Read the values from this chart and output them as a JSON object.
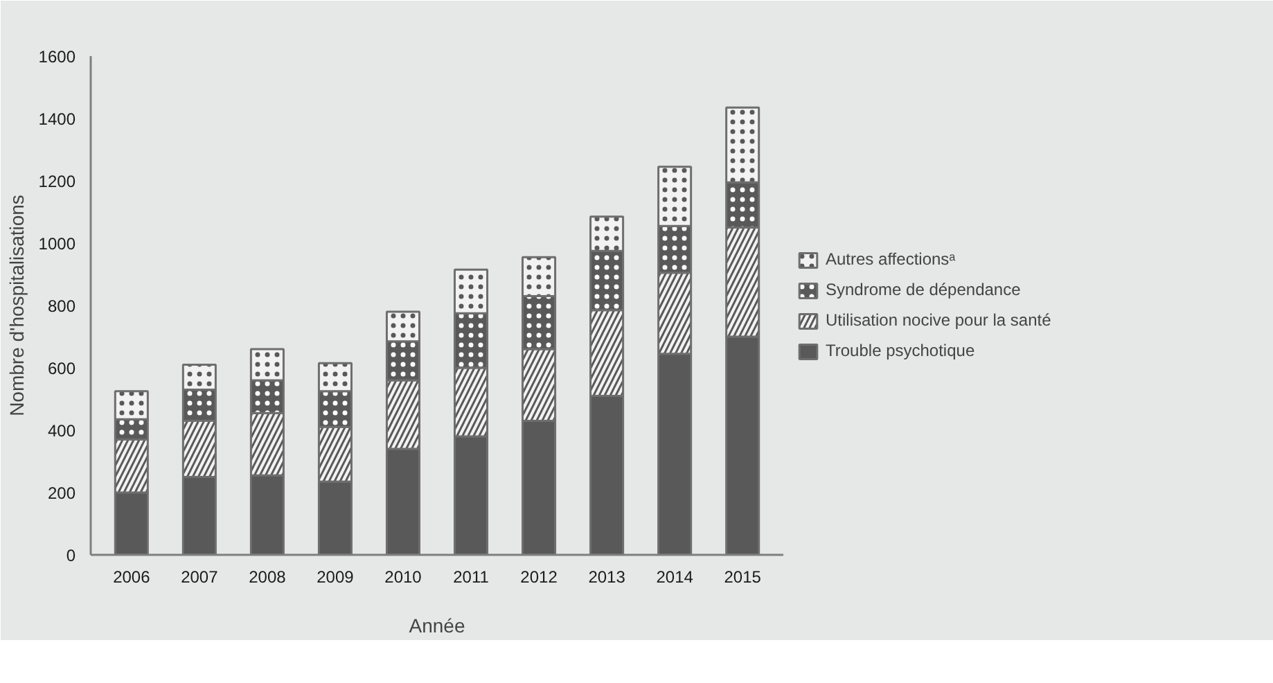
{
  "chart_data": {
    "type": "bar",
    "stacked": true,
    "xlabel": "Année",
    "ylabel": "Nombre d'hospitalisations",
    "categories": [
      "2006",
      "2007",
      "2008",
      "2009",
      "2010",
      "2011",
      "2012",
      "2013",
      "2014",
      "2015"
    ],
    "series": [
      {
        "name": "Trouble psychotique",
        "color": "#595959",
        "values": [
          200,
          250,
          255,
          235,
          340,
          380,
          430,
          510,
          645,
          700
        ]
      },
      {
        "name": "Utilisation nocive pour la santé",
        "color": "#f2f2f2",
        "values": [
          170,
          180,
          200,
          175,
          220,
          220,
          230,
          275,
          260,
          350
        ]
      },
      {
        "name": "Syndrome de dépendance",
        "color": "#595959",
        "values": [
          65,
          100,
          105,
          115,
          125,
          175,
          170,
          190,
          150,
          145
        ]
      },
      {
        "name": "Autres affectionsᵃ",
        "color": "#f2f2f2",
        "values": [
          90,
          80,
          100,
          90,
          95,
          140,
          125,
          110,
          190,
          240
        ]
      }
    ],
    "ylim": [
      0,
      1600
    ],
    "yticks": [
      0,
      200,
      400,
      600,
      800,
      1000,
      1200,
      1400,
      1600
    ],
    "legend": "right"
  }
}
